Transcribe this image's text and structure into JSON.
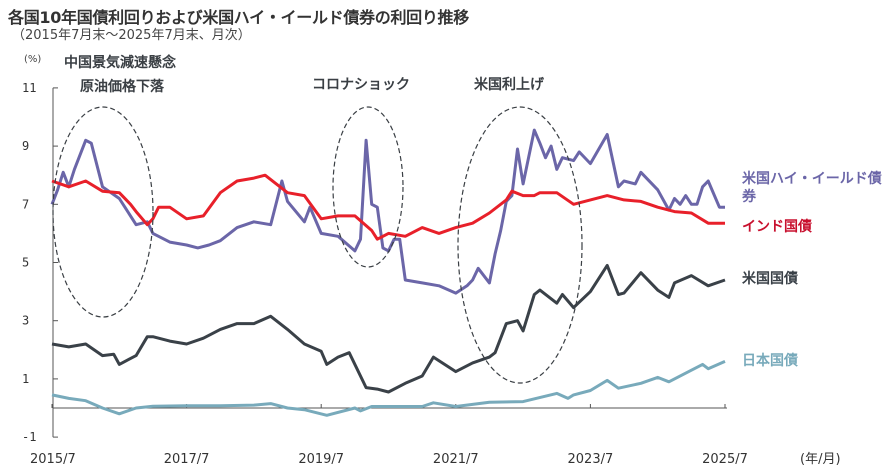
{
  "title": "各国10年国債利回りおよび米国ハイ・イールド債券の利回り推移",
  "subtitle": "（2015年7月末～2025年7月末、月次）",
  "chart_data": {
    "type": "line",
    "title": "各国10年国債利回りおよび米国ハイ・イールド債券の利回り推移",
    "ylabel": "(%)",
    "xlabel": "(年/月)",
    "ylim": [
      -1,
      11
    ],
    "yticks": [
      -1,
      1,
      3,
      5,
      7,
      9,
      11
    ],
    "xlim": [
      "2015/7",
      "2025/7"
    ],
    "xticks": [
      "2015/7",
      "2017/7",
      "2019/7",
      "2021/7",
      "2023/7",
      "2025/7"
    ],
    "grid": false,
    "legend": "right, inline labels",
    "annotations": [
      {
        "lines": [
          "中国景気減速懸念",
          "原油価格下落"
        ],
        "period": [
          "2015/7",
          "2017/1"
        ]
      },
      {
        "lines": [
          "コロナショック"
        ],
        "period": [
          "2019/12",
          "2020/7"
        ]
      },
      {
        "lines": [
          "米国利上げ"
        ],
        "period": [
          "2021/6",
          "2023/3"
        ]
      }
    ],
    "series": [
      {
        "name": "米国ハイ・イールド債券",
        "color": "#6b66a8",
        "points": [
          [
            "2015/7",
            7.0
          ],
          [
            "2015/8",
            7.5
          ],
          [
            "2015/9",
            8.1
          ],
          [
            "2015/10",
            7.6
          ],
          [
            "2015/11",
            8.2
          ],
          [
            "2016/1",
            9.2
          ],
          [
            "2016/2",
            9.1
          ],
          [
            "2016/4",
            7.6
          ],
          [
            "2016/7",
            7.2
          ],
          [
            "2016/9",
            6.6
          ],
          [
            "2016/10",
            6.3
          ],
          [
            "2016/12",
            6.4
          ],
          [
            "2017/1",
            6.0
          ],
          [
            "2017/4",
            5.7
          ],
          [
            "2017/7",
            5.6
          ],
          [
            "2017/9",
            5.5
          ],
          [
            "2017/11",
            5.6
          ],
          [
            "2018/1",
            5.75
          ],
          [
            "2018/4",
            6.2
          ],
          [
            "2018/7",
            6.4
          ],
          [
            "2018/10",
            6.3
          ],
          [
            "2018/12",
            7.8
          ],
          [
            "2019/1",
            7.1
          ],
          [
            "2019/4",
            6.4
          ],
          [
            "2019/5",
            6.9
          ],
          [
            "2019/7",
            6.0
          ],
          [
            "2019/10",
            5.9
          ],
          [
            "2020/1",
            5.4
          ],
          [
            "2020/2",
            5.8
          ],
          [
            "2020/3",
            9.2
          ],
          [
            "2020/4",
            7.0
          ],
          [
            "2020/5",
            6.9
          ],
          [
            "2020/6",
            5.5
          ],
          [
            "2020/7",
            5.4
          ],
          [
            "2020/8",
            5.8
          ],
          [
            "2020/9",
            5.8
          ],
          [
            "2020/10",
            4.4
          ],
          [
            "2021/1",
            4.3
          ],
          [
            "2021/4",
            4.2
          ],
          [
            "2021/7",
            3.95
          ],
          [
            "2021/9",
            4.2
          ],
          [
            "2021/10",
            4.4
          ],
          [
            "2021/11",
            4.8
          ],
          [
            "2022/1",
            4.3
          ],
          [
            "2022/2",
            5.3
          ],
          [
            "2022/3",
            6.1
          ],
          [
            "2022/4",
            7.1
          ],
          [
            "2022/5",
            7.3
          ],
          [
            "2022/6",
            8.9
          ],
          [
            "2022/7",
            7.7
          ],
          [
            "2022/9",
            9.55
          ],
          [
            "2022/10",
            9.1
          ],
          [
            "2022/11",
            8.6
          ],
          [
            "2022/12",
            9.0
          ],
          [
            "2023/1",
            8.2
          ],
          [
            "2023/2",
            8.6
          ],
          [
            "2023/4",
            8.5
          ],
          [
            "2023/5",
            8.8
          ],
          [
            "2023/7",
            8.4
          ],
          [
            "2023/10",
            9.4
          ],
          [
            "2023/12",
            7.6
          ],
          [
            "2024/1",
            7.8
          ],
          [
            "2024/3",
            7.7
          ],
          [
            "2024/4",
            8.1
          ],
          [
            "2024/7",
            7.5
          ],
          [
            "2024/9",
            6.8
          ],
          [
            "2024/10",
            7.2
          ],
          [
            "2024/11",
            7.0
          ],
          [
            "2024/12",
            7.3
          ],
          [
            "2025/1",
            7.0
          ],
          [
            "2025/2",
            7.0
          ],
          [
            "2025/3",
            7.6
          ],
          [
            "2025/4",
            7.8
          ],
          [
            "2025/6",
            6.9
          ],
          [
            "2025/7",
            6.9
          ]
        ]
      },
      {
        "name": "インド国債",
        "color": "#e8202a",
        "points": [
          [
            "2015/7",
            7.8
          ],
          [
            "2015/10",
            7.6
          ],
          [
            "2016/1",
            7.8
          ],
          [
            "2016/4",
            7.45
          ],
          [
            "2016/7",
            7.4
          ],
          [
            "2016/9",
            7.0
          ],
          [
            "2016/10",
            6.75
          ],
          [
            "2016/12",
            6.3
          ],
          [
            "2017/1",
            6.5
          ],
          [
            "2017/2",
            6.9
          ],
          [
            "2017/4",
            6.9
          ],
          [
            "2017/7",
            6.5
          ],
          [
            "2017/10",
            6.6
          ],
          [
            "2018/1",
            7.4
          ],
          [
            "2018/4",
            7.8
          ],
          [
            "2018/7",
            7.9
          ],
          [
            "2018/9",
            8.0
          ],
          [
            "2019/1",
            7.4
          ],
          [
            "2019/4",
            7.3
          ],
          [
            "2019/7",
            6.5
          ],
          [
            "2019/10",
            6.6
          ],
          [
            "2020/1",
            6.6
          ],
          [
            "2020/4",
            6.1
          ],
          [
            "2020/5",
            5.8
          ],
          [
            "2020/7",
            6.0
          ],
          [
            "2020/10",
            5.9
          ],
          [
            "2021/1",
            6.2
          ],
          [
            "2021/4",
            6.0
          ],
          [
            "2021/7",
            6.2
          ],
          [
            "2021/10",
            6.35
          ],
          [
            "2022/1",
            6.7
          ],
          [
            "2022/4",
            7.15
          ],
          [
            "2022/5",
            7.45
          ],
          [
            "2022/7",
            7.3
          ],
          [
            "2022/9",
            7.3
          ],
          [
            "2022/10",
            7.4
          ],
          [
            "2023/1",
            7.4
          ],
          [
            "2023/4",
            7.0
          ],
          [
            "2023/7",
            7.15
          ],
          [
            "2023/10",
            7.3
          ],
          [
            "2024/1",
            7.15
          ],
          [
            "2024/4",
            7.1
          ],
          [
            "2024/7",
            6.9
          ],
          [
            "2024/10",
            6.75
          ],
          [
            "2025/1",
            6.7
          ],
          [
            "2025/4",
            6.35
          ],
          [
            "2025/7",
            6.35
          ]
        ]
      },
      {
        "name": "米国国債",
        "color": "#3a4148",
        "points": [
          [
            "2015/7",
            2.2
          ],
          [
            "2015/10",
            2.1
          ],
          [
            "2016/1",
            2.2
          ],
          [
            "2016/4",
            1.8
          ],
          [
            "2016/6",
            1.85
          ],
          [
            "2016/7",
            1.5
          ],
          [
            "2016/10",
            1.8
          ],
          [
            "2016/12",
            2.45
          ],
          [
            "2017/1",
            2.45
          ],
          [
            "2017/4",
            2.3
          ],
          [
            "2017/7",
            2.2
          ],
          [
            "2017/10",
            2.4
          ],
          [
            "2018/1",
            2.7
          ],
          [
            "2018/4",
            2.9
          ],
          [
            "2018/7",
            2.9
          ],
          [
            "2018/10",
            3.15
          ],
          [
            "2019/1",
            2.7
          ],
          [
            "2019/4",
            2.2
          ],
          [
            "2019/7",
            1.95
          ],
          [
            "2019/8",
            1.5
          ],
          [
            "2019/10",
            1.75
          ],
          [
            "2019/12",
            1.9
          ],
          [
            "2020/3",
            0.7
          ],
          [
            "2020/5",
            0.65
          ],
          [
            "2020/7",
            0.55
          ],
          [
            "2020/10",
            0.85
          ],
          [
            "2021/1",
            1.1
          ],
          [
            "2021/3",
            1.75
          ],
          [
            "2021/7",
            1.25
          ],
          [
            "2021/10",
            1.55
          ],
          [
            "2022/1",
            1.75
          ],
          [
            "2022/2",
            1.9
          ],
          [
            "2022/4",
            2.9
          ],
          [
            "2022/6",
            3.0
          ],
          [
            "2022/7",
            2.65
          ],
          [
            "2022/9",
            3.9
          ],
          [
            "2022/10",
            4.05
          ],
          [
            "2023/1",
            3.6
          ],
          [
            "2023/2",
            3.9
          ],
          [
            "2023/4",
            3.45
          ],
          [
            "2023/7",
            4.0
          ],
          [
            "2023/10",
            4.9
          ],
          [
            "2023/12",
            3.9
          ],
          [
            "2024/1",
            3.95
          ],
          [
            "2024/4",
            4.65
          ],
          [
            "2024/7",
            4.05
          ],
          [
            "2024/9",
            3.8
          ],
          [
            "2024/10",
            4.3
          ],
          [
            "2025/1",
            4.55
          ],
          [
            "2025/4",
            4.2
          ],
          [
            "2025/7",
            4.4
          ]
        ]
      },
      {
        "name": "日本国債",
        "color": "#78aabb",
        "points": [
          [
            "2015/7",
            0.45
          ],
          [
            "2015/10",
            0.33
          ],
          [
            "2016/1",
            0.25
          ],
          [
            "2016/4",
            0.0
          ],
          [
            "2016/7",
            -0.2
          ],
          [
            "2016/10",
            0.0
          ],
          [
            "2017/1",
            0.06
          ],
          [
            "2017/7",
            0.08
          ],
          [
            "2018/1",
            0.08
          ],
          [
            "2018/7",
            0.1
          ],
          [
            "2018/10",
            0.15
          ],
          [
            "2019/1",
            0.0
          ],
          [
            "2019/4",
            -0.06
          ],
          [
            "2019/8",
            -0.25
          ],
          [
            "2020/1",
            0.0
          ],
          [
            "2020/2",
            -0.1
          ],
          [
            "2020/4",
            0.05
          ],
          [
            "2020/7",
            0.05
          ],
          [
            "2021/1",
            0.05
          ],
          [
            "2021/3",
            0.18
          ],
          [
            "2021/7",
            0.05
          ],
          [
            "2022/1",
            0.2
          ],
          [
            "2022/7",
            0.22
          ],
          [
            "2023/1",
            0.5
          ],
          [
            "2023/3",
            0.33
          ],
          [
            "2023/4",
            0.45
          ],
          [
            "2023/7",
            0.6
          ],
          [
            "2023/10",
            0.95
          ],
          [
            "2023/12",
            0.68
          ],
          [
            "2024/4",
            0.85
          ],
          [
            "2024/7",
            1.05
          ],
          [
            "2024/9",
            0.9
          ],
          [
            "2025/1",
            1.3
          ],
          [
            "2025/3",
            1.5
          ],
          [
            "2025/4",
            1.35
          ],
          [
            "2025/7",
            1.6
          ]
        ]
      }
    ]
  }
}
